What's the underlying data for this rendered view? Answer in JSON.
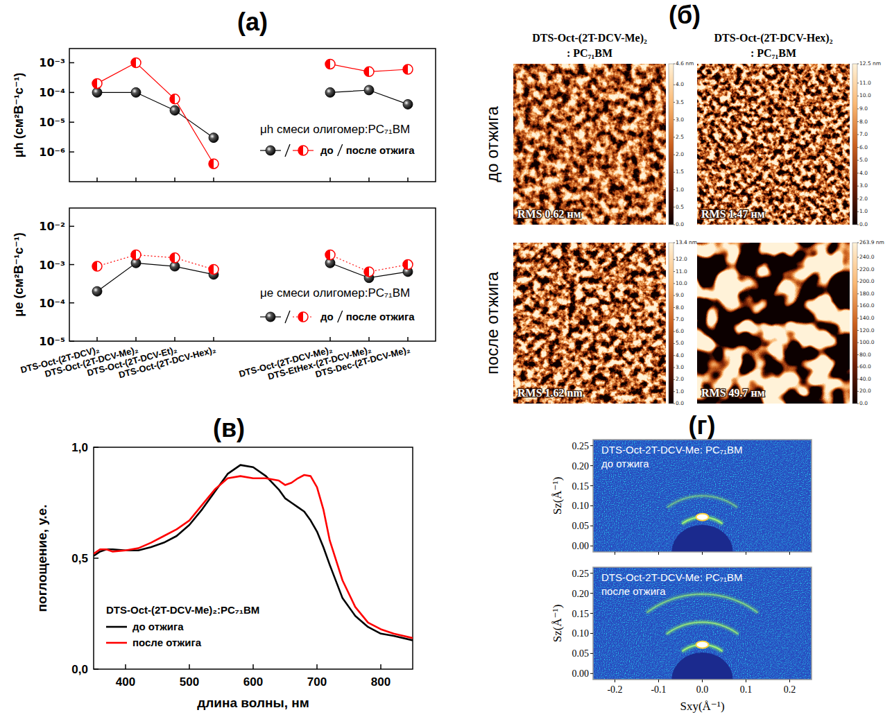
{
  "chart_data": [
    {
      "type": "line",
      "panel": "(а)",
      "y_label": "μh (см²В⁻¹с⁻¹)",
      "annotation": "μh смеси олигомер:PC₇₁BM",
      "categories": [
        "DTS-Oct-(2T-DCV)₂",
        "DTS-Oct-(2T-DCV-Me)₂",
        "DTS-Oct-(2T-DCV-Et)₂",
        "DTS-Oct-(2T-DCV-Hex)₂",
        null,
        null,
        "DTS-Oct-(2T-DCV-Me)₂",
        "DTS-EtHex-(2T-DCV-Me)₂",
        "DTS-Dec-(2T-DCV-Me)₂"
      ],
      "series": [
        {
          "name": "до",
          "color": "#000000",
          "marker": "circle",
          "line_style": "solid",
          "values": [
            0.0001,
            0.0001,
            2.5e-05,
            3e-06,
            null,
            null,
            0.0001,
            0.00012,
            4e-05
          ]
        },
        {
          "name": "после отжига",
          "color": "#ff0000",
          "marker": "half_circle",
          "line_style": "solid",
          "values": [
            0.0002,
            0.001,
            6e-05,
            4e-07,
            null,
            null,
            0.0009,
            0.0005,
            0.0006
          ]
        }
      ],
      "log": "y",
      "ylim": [
        1e-07,
        0.003
      ],
      "yticks": [
        {
          "value": 1e-06,
          "label": "10⁻⁶"
        },
        {
          "value": 1e-05,
          "label": "10⁻⁵"
        },
        {
          "value": 0.0001,
          "label": "10⁻⁴"
        },
        {
          "value": 0.001,
          "label": "10⁻³"
        }
      ],
      "legend": "right",
      "tick_labels": "y"
    },
    {
      "type": "line",
      "y_label": "μe (см²В⁻¹с⁻¹)",
      "annotation": "μe смеси олигомер:PC₇₁BM",
      "categories": [
        "DTS-Oct-(2T-DCV)₂",
        "DTS-Oct-(2T-DCV-Me)₂",
        "DTS-Oct-(2T-DCV-Et)₂",
        "DTS-Oct-(2T-DCV-Hex)₂",
        null,
        null,
        "DTS-Oct-(2T-DCV-Me)₂",
        "DTS-EtHex-(2T-DCV-Me)₂",
        "DTS-Dec-(2T-DCV-Me)₂"
      ],
      "series": [
        {
          "name": "до",
          "color": "#000000",
          "marker": "circle",
          "line_style": "solid",
          "values": [
            0.0002,
            0.0011,
            0.0009,
            0.00055,
            null,
            null,
            0.0011,
            0.00045,
            0.00065
          ]
        },
        {
          "name": "после отжига",
          "color": "#ff0000",
          "marker": "half_circle",
          "line_style": "dotted",
          "values": [
            0.0009,
            0.0018,
            0.0015,
            0.00075,
            null,
            null,
            0.0018,
            0.00065,
            0.001
          ]
        }
      ],
      "log": "y",
      "ylim": [
        1e-05,
        0.03
      ],
      "yticks": [
        {
          "value": 1e-05,
          "label": "10⁻⁵"
        },
        {
          "value": 0.0001,
          "label": "10⁻⁴"
        },
        {
          "value": 0.001,
          "label": "10⁻³"
        },
        {
          "value": 0.01,
          "label": "10⁻²"
        }
      ],
      "legend": "right"
    },
    {
      "type": "line",
      "panel": "(в)",
      "x_label": "длина волны, нм",
      "y_label": "поглощение, у.е.",
      "legend_title": "DTS-Oct-(2T-DCV-Me)₂:PC₇₁BM",
      "x": [
        350,
        360,
        370,
        380,
        400,
        420,
        440,
        460,
        480,
        500,
        520,
        540,
        560,
        580,
        600,
        620,
        640,
        650,
        660,
        670,
        680,
        690,
        700,
        710,
        720,
        740,
        760,
        780,
        800,
        820,
        850
      ],
      "series": [
        {
          "name": "до отжига",
          "color": "#000000",
          "values": [
            0.51,
            0.53,
            0.54,
            0.54,
            0.535,
            0.535,
            0.55,
            0.57,
            0.6,
            0.65,
            0.72,
            0.8,
            0.88,
            0.92,
            0.91,
            0.87,
            0.81,
            0.77,
            0.75,
            0.73,
            0.71,
            0.67,
            0.62,
            0.55,
            0.47,
            0.32,
            0.24,
            0.19,
            0.16,
            0.15,
            0.13
          ]
        },
        {
          "name": "после отжига",
          "color": "#ff0000",
          "values": [
            0.52,
            0.54,
            0.54,
            0.53,
            0.535,
            0.545,
            0.57,
            0.6,
            0.63,
            0.67,
            0.74,
            0.81,
            0.86,
            0.87,
            0.86,
            0.86,
            0.85,
            0.83,
            0.84,
            0.86,
            0.875,
            0.87,
            0.82,
            0.72,
            0.58,
            0.4,
            0.28,
            0.21,
            0.18,
            0.16,
            0.14
          ]
        }
      ],
      "xlim": [
        350,
        850
      ],
      "xticks": [
        400,
        500,
        600,
        700,
        800
      ],
      "ylim": [
        0,
        1
      ],
      "yticks": [
        {
          "value": 0,
          "label": "0,0"
        },
        {
          "value": 0.5,
          "label": "0,5"
        },
        {
          "value": 1,
          "label": "1,0"
        }
      ],
      "legend": "lower left"
    },
    {
      "type": "diffraction",
      "panel": "(г)",
      "title": "DTS-Oct-2T-DCV-Me: PC₇₁BM",
      "subtitle": "до отжига",
      "y_label": "Sz(Å⁻¹)",
      "xlim": [
        -0.25,
        0.25
      ],
      "xticks": [
        -0.2,
        -0.1,
        {
          "value": 0,
          "label": "0.0"
        },
        0.1,
        0.2
      ],
      "ylim": [
        -0.015,
        0.265
      ],
      "yticks": [
        {
          "value": 0,
          "label": "0.00"
        },
        {
          "value": 0.05,
          "label": "0.05"
        },
        {
          "value": 0.1,
          "label": "0.10"
        },
        {
          "value": 0.15,
          "label": "0.15"
        },
        {
          "value": 0.2,
          "label": "0.20"
        },
        {
          "value": 0.25,
          "label": "0.25"
        }
      ],
      "reflections": [
        0.072,
        0.125
      ],
      "intensities": [
        1,
        0.3
      ],
      "tick_labels": "y"
    },
    {
      "type": "diffraction",
      "title": "DTS-Oct-2T-DCV-Me: PC₇₁BM",
      "subtitle": "после отжига",
      "x_label": "Sxy(Å⁻¹)",
      "y_label": "Sz(Å⁻¹)",
      "xlim": [
        -0.25,
        0.25
      ],
      "xticks": [
        -0.2,
        -0.1,
        {
          "value": 0,
          "label": "0.0"
        },
        0.1,
        0.2
      ],
      "ylim": [
        -0.015,
        0.265
      ],
      "yticks": [
        {
          "value": 0,
          "label": "0.00"
        },
        {
          "value": 0.05,
          "label": "0.05"
        },
        {
          "value": 0.1,
          "label": "0.10"
        },
        {
          "value": 0.15,
          "label": "0.15"
        },
        {
          "value": 0.2,
          "label": "0.20"
        },
        {
          "value": 0.25,
          "label": "0.25"
        }
      ],
      "reflections": [
        0.072,
        0.128,
        0.198
      ],
      "intensities": [
        1,
        0.7,
        0.5
      ]
    }
  ],
  "afm": {
    "panel": "(б)",
    "columns": [
      "DTS-Oct-(2T-DCV-Me)₂ : PC₇₁BM",
      "DTS-Oct-(2T-DCV-Hex)₂ : PC₇₁BM"
    ],
    "rows": [
      "до отжига",
      "после отжига"
    ],
    "images": [
      [
        {
          "rms": "RMS 0.62 нм",
          "colorbar": {
            "range": [
              0,
              4.6
            ],
            "ticks": [
              {
                "value": 0,
                "label": "0.0"
              },
              0.5,
              {
                "value": 1,
                "label": "1.0"
              },
              1.5,
              {
                "value": 2,
                "label": "2.0"
              },
              2.5,
              {
                "value": 3,
                "label": "3.0"
              },
              3.5,
              {
                "value": 4,
                "label": "4.0"
              },
              {
                "value": 4.6,
                "label": "4.6 nm"
              }
            ]
          }
        },
        {
          "rms": "RMS 1.47 нм",
          "colorbar": {
            "range": [
              0,
              12.5
            ],
            "ticks": [
              {
                "value": 0,
                "label": "0.0"
              },
              {
                "value": 1,
                "label": "1.0"
              },
              {
                "value": 2,
                "label": "2.0"
              },
              {
                "value": 3,
                "label": "3.0"
              },
              {
                "value": 4,
                "label": "4.0"
              },
              {
                "value": 5,
                "label": "5.0"
              },
              {
                "value": 6,
                "label": "6.0"
              },
              {
                "value": 7,
                "label": "7.0"
              },
              {
                "value": 8,
                "label": "8.0"
              },
              {
                "value": 9,
                "label": "9.0"
              },
              {
                "value": 10,
                "label": "10.0"
              },
              {
                "value": 11,
                "label": "11.0"
              },
              {
                "value": 12.5,
                "label": "12.5 nm"
              }
            ]
          }
        }
      ],
      [
        {
          "rms": "RMS 1.62 nm",
          "colorbar": {
            "range": [
              0,
              13.4
            ],
            "ticks": [
              {
                "value": 0,
                "label": "0.0"
              },
              {
                "value": 1,
                "label": "1.0"
              },
              {
                "value": 2,
                "label": "2.0"
              },
              {
                "value": 3,
                "label": "3.0"
              },
              {
                "value": 4,
                "label": "4.0"
              },
              {
                "value": 5,
                "label": "5.0"
              },
              {
                "value": 6,
                "label": "6.0"
              },
              {
                "value": 7,
                "label": "7.0"
              },
              {
                "value": 8,
                "label": "8.0"
              },
              {
                "value": 9,
                "label": "9.0"
              },
              {
                "value": 10,
                "label": "10.0"
              },
              {
                "value": 11,
                "label": "11.0"
              },
              {
                "value": 12,
                "label": "12.0"
              },
              {
                "value": 13.4,
                "label": "13.4 nm"
              }
            ]
          }
        },
        {
          "rms": "RMS 49.7 нм",
          "colorbar": {
            "range": [
              0,
              263.9
            ],
            "ticks": [
              {
                "value": 0,
                "label": "0.0"
              },
              {
                "value": 20,
                "label": "20.0"
              },
              {
                "value": 40,
                "label": "40.0"
              },
              {
                "value": 60,
                "label": "60.0"
              },
              {
                "value": 80,
                "label": "80.0"
              },
              {
                "value": 100,
                "label": "100.0"
              },
              {
                "value": 120,
                "label": "120.0"
              },
              {
                "value": 140,
                "label": "140.0"
              },
              {
                "value": 160,
                "label": "160.0"
              },
              {
                "value": 180,
                "label": "180.0"
              },
              {
                "value": 200,
                "label": "200.0"
              },
              {
                "value": 220,
                "label": "220.0"
              },
              {
                "value": 240,
                "label": "240.0"
              },
              {
                "value": 263.9,
                "label": "263.9 nm"
              }
            ]
          }
        }
      ]
    ]
  }
}
